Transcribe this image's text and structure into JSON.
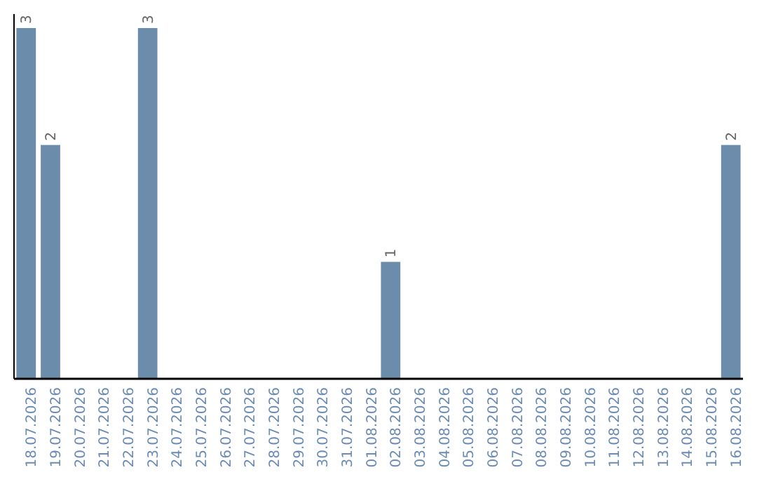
{
  "chart_data": {
    "type": "bar",
    "categories": [
      "18.07.2026",
      "19.07.2026",
      "20.07.2026",
      "21.07.2026",
      "22.07.2026",
      "23.07.2026",
      "24.07.2026",
      "25.07.2026",
      "26.07.2026",
      "27.07.2026",
      "28.07.2026",
      "29.07.2026",
      "30.07.2026",
      "31.07.2026",
      "01.08.2026",
      "02.08.2026",
      "03.08.2026",
      "04.08.2026",
      "05.08.2026",
      "06.08.2026",
      "07.08.2026",
      "08.08.2026",
      "09.08.2026",
      "10.08.2026",
      "11.08.2026",
      "12.08.2026",
      "13.08.2026",
      "14.08.2026",
      "15.08.2026",
      "16.08.2026"
    ],
    "values": [
      3,
      2,
      0,
      0,
      0,
      3,
      0,
      0,
      0,
      0,
      0,
      0,
      0,
      0,
      0,
      1,
      0,
      0,
      0,
      0,
      0,
      0,
      0,
      0,
      0,
      0,
      0,
      0,
      0,
      2
    ],
    "value_labels": [
      "3",
      "2",
      null,
      null,
      null,
      "3",
      null,
      null,
      null,
      null,
      null,
      null,
      null,
      null,
      null,
      "1",
      null,
      null,
      null,
      null,
      null,
      null,
      null,
      null,
      null,
      null,
      null,
      null,
      null,
      "2"
    ],
    "color": "#6b8cab",
    "ylim": [
      0,
      3.12
    ],
    "tick_labels": "x"
  }
}
